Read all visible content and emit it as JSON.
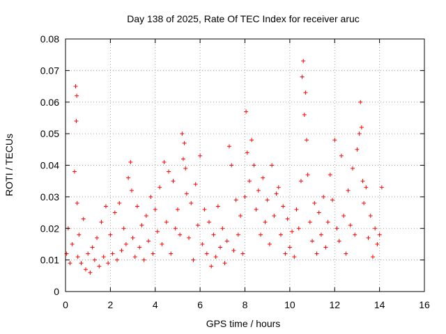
{
  "chart_data": {
    "type": "scatter",
    "title": "Day 138 of 2025, Rate Of TEC Index for receiver aruc",
    "xlabel": "GPS time / hours",
    "ylabel": "ROTI / TECUs",
    "xlim": [
      0,
      16
    ],
    "ylim": [
      0,
      0.08
    ],
    "x_ticks": [
      "0",
      "2",
      "4",
      "6",
      "8",
      "10",
      "12",
      "14",
      "16"
    ],
    "y_ticks": [
      "0",
      "0.01",
      "0.02",
      "0.03",
      "0.04",
      "0.05",
      "0.06",
      "0.07",
      "0.08"
    ],
    "grid": true,
    "marker": "+",
    "color": "#ff0000",
    "series": [
      {
        "x": [
          0.05,
          0.12,
          0.2,
          0.3,
          0.4,
          0.45,
          0.48,
          0.5,
          0.52,
          0.55,
          0.6,
          0.7,
          0.8,
          0.9,
          1.0,
          1.1,
          1.2,
          1.3,
          1.4,
          1.5,
          1.6,
          1.7,
          1.8,
          1.9,
          2.0,
          2.1,
          2.2,
          2.3,
          2.4,
          2.5,
          2.6,
          2.7,
          2.8,
          2.9,
          2.95,
          3.0,
          3.1,
          3.2,
          3.3,
          3.4,
          3.5,
          3.6,
          3.7,
          3.8,
          3.9,
          4.0,
          4.1,
          4.2,
          4.3,
          4.4,
          4.5,
          4.6,
          4.7,
          4.8,
          4.9,
          5.0,
          5.1,
          5.2,
          5.25,
          5.3,
          5.35,
          5.4,
          5.5,
          5.6,
          5.7,
          5.8,
          5.9,
          6.0,
          6.1,
          6.2,
          6.3,
          6.4,
          6.5,
          6.6,
          6.7,
          6.8,
          6.9,
          7.0,
          7.1,
          7.2,
          7.3,
          7.4,
          7.5,
          7.6,
          7.7,
          7.8,
          7.9,
          8.0,
          8.05,
          8.1,
          8.2,
          8.3,
          8.4,
          8.5,
          8.6,
          8.7,
          8.8,
          8.9,
          9.0,
          9.1,
          9.2,
          9.3,
          9.4,
          9.5,
          9.6,
          9.7,
          9.8,
          9.9,
          10.0,
          10.1,
          10.2,
          10.3,
          10.4,
          10.5,
          10.55,
          10.6,
          10.65,
          10.7,
          10.75,
          10.8,
          10.9,
          11.0,
          11.1,
          11.2,
          11.3,
          11.4,
          11.5,
          11.6,
          11.7,
          11.8,
          11.9,
          12.0,
          12.1,
          12.2,
          12.3,
          12.4,
          12.5,
          12.6,
          12.7,
          12.8,
          12.9,
          13.0,
          13.1,
          13.15,
          13.2,
          13.25,
          13.3,
          13.4,
          13.5,
          13.6,
          13.7,
          13.8,
          13.9,
          14.0,
          14.1
        ],
        "y": [
          0.012,
          0.02,
          0.009,
          0.015,
          0.038,
          0.065,
          0.054,
          0.062,
          0.028,
          0.011,
          0.018,
          0.009,
          0.023,
          0.007,
          0.012,
          0.006,
          0.014,
          0.01,
          0.017,
          0.008,
          0.022,
          0.011,
          0.027,
          0.009,
          0.018,
          0.012,
          0.025,
          0.01,
          0.028,
          0.013,
          0.02,
          0.015,
          0.036,
          0.041,
          0.032,
          0.017,
          0.011,
          0.027,
          0.014,
          0.021,
          0.01,
          0.024,
          0.016,
          0.03,
          0.012,
          0.026,
          0.019,
          0.033,
          0.015,
          0.041,
          0.022,
          0.038,
          0.012,
          0.035,
          0.02,
          0.026,
          0.018,
          0.05,
          0.042,
          0.047,
          0.039,
          0.031,
          0.017,
          0.028,
          0.01,
          0.034,
          0.021,
          0.043,
          0.015,
          0.026,
          0.012,
          0.022,
          0.008,
          0.018,
          0.011,
          0.027,
          0.014,
          0.02,
          0.009,
          0.016,
          0.046,
          0.04,
          0.013,
          0.029,
          0.018,
          0.024,
          0.012,
          0.03,
          0.057,
          0.044,
          0.035,
          0.048,
          0.04,
          0.026,
          0.032,
          0.018,
          0.036,
          0.022,
          0.029,
          0.015,
          0.04,
          0.024,
          0.031,
          0.033,
          0.018,
          0.027,
          0.012,
          0.023,
          0.014,
          0.019,
          0.011,
          0.026,
          0.02,
          0.035,
          0.068,
          0.073,
          0.056,
          0.063,
          0.048,
          0.037,
          0.022,
          0.016,
          0.028,
          0.012,
          0.025,
          0.018,
          0.03,
          0.014,
          0.022,
          0.037,
          0.029,
          0.048,
          0.02,
          0.016,
          0.043,
          0.024,
          0.012,
          0.032,
          0.021,
          0.039,
          0.018,
          0.045,
          0.05,
          0.06,
          0.052,
          0.035,
          0.028,
          0.033,
          0.017,
          0.024,
          0.011,
          0.02,
          0.015,
          0.018,
          0.033
        ]
      }
    ]
  }
}
